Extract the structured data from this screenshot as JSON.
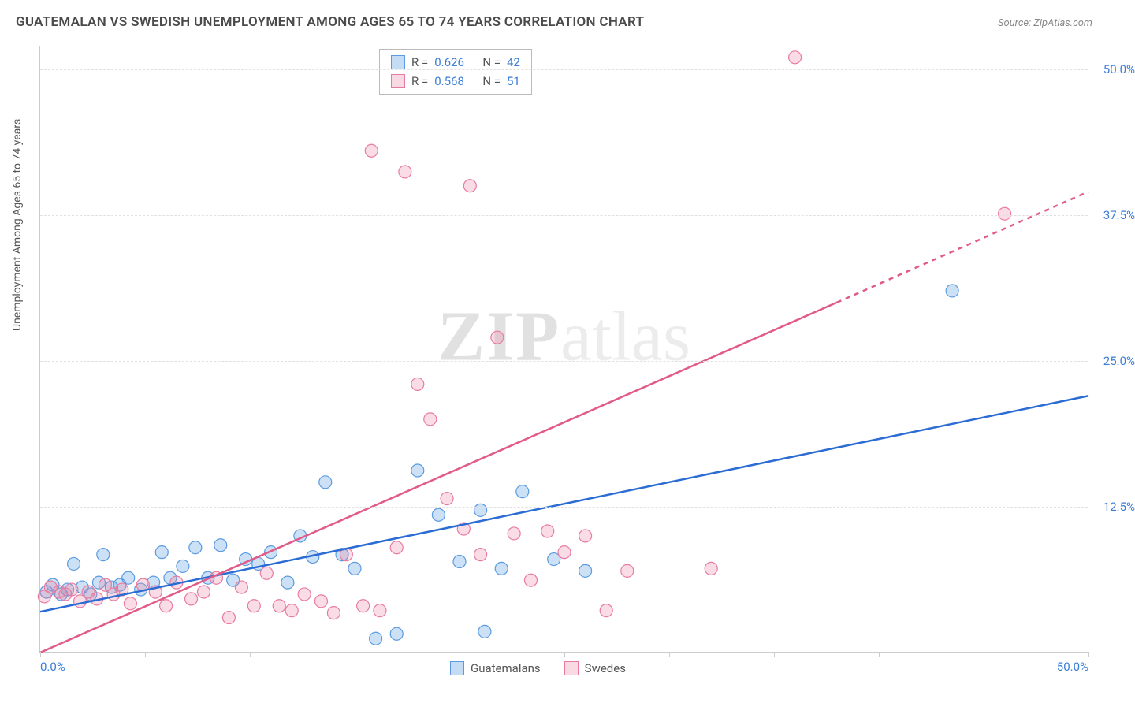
{
  "title": "GUATEMALAN VS SWEDISH UNEMPLOYMENT AMONG AGES 65 TO 74 YEARS CORRELATION CHART",
  "source": "Source: ZipAtlas.com",
  "ylabel": "Unemployment Among Ages 65 to 74 years",
  "watermark_a": "ZIP",
  "watermark_b": "atlas",
  "chart": {
    "type": "scatter",
    "xlim": [
      0,
      50
    ],
    "ylim": [
      0,
      52
    ],
    "x_axis_labels": [
      {
        "v": 0,
        "t": "0.0%"
      },
      {
        "v": 50,
        "t": "50.0%"
      }
    ],
    "y_axis_labels": [
      {
        "v": 12.5,
        "t": "12.5%"
      },
      {
        "v": 25.0,
        "t": "25.0%"
      },
      {
        "v": 37.5,
        "t": "37.5%"
      },
      {
        "v": 50.0,
        "t": "50.0%"
      }
    ],
    "x_tick_positions": [
      0,
      5,
      10,
      15,
      20,
      25,
      30,
      35,
      40,
      45,
      50
    ],
    "background_color": "#ffffff",
    "grid_color": "#e0e0e0",
    "series": [
      {
        "name": "Guatemalans",
        "color_fill": "rgba(90,155,225,0.30)",
        "color_stroke": "#5a9be1",
        "marker_r": 8,
        "R": "0.626",
        "N": "42",
        "trend": {
          "color": "#2b6cd4",
          "width": 2.5,
          "x1": 0,
          "y1": 3.5,
          "x2": 50,
          "y2": 22.0
        },
        "points": [
          [
            0.3,
            5.2
          ],
          [
            0.6,
            5.8
          ],
          [
            1.0,
            5.0
          ],
          [
            1.3,
            5.4
          ],
          [
            1.6,
            7.6
          ],
          [
            2.0,
            5.6
          ],
          [
            2.4,
            5.0
          ],
          [
            2.8,
            6.0
          ],
          [
            3.0,
            8.4
          ],
          [
            3.4,
            5.6
          ],
          [
            3.8,
            5.8
          ],
          [
            4.2,
            6.4
          ],
          [
            4.8,
            5.4
          ],
          [
            5.4,
            6.0
          ],
          [
            5.8,
            8.6
          ],
          [
            6.2,
            6.4
          ],
          [
            6.8,
            7.4
          ],
          [
            7.4,
            9.0
          ],
          [
            8.0,
            6.4
          ],
          [
            8.6,
            9.2
          ],
          [
            9.2,
            6.2
          ],
          [
            9.8,
            8.0
          ],
          [
            10.4,
            7.6
          ],
          [
            11.0,
            8.6
          ],
          [
            11.8,
            6.0
          ],
          [
            12.4,
            10.0
          ],
          [
            13.0,
            8.2
          ],
          [
            13.6,
            14.6
          ],
          [
            14.4,
            8.4
          ],
          [
            15.0,
            7.2
          ],
          [
            16.0,
            1.2
          ],
          [
            17.0,
            1.6
          ],
          [
            18.0,
            15.6
          ],
          [
            19.0,
            11.8
          ],
          [
            20.0,
            7.8
          ],
          [
            21.0,
            12.2
          ],
          [
            21.2,
            1.8
          ],
          [
            22.0,
            7.2
          ],
          [
            23.0,
            13.8
          ],
          [
            24.5,
            8.0
          ],
          [
            26.0,
            7.0
          ],
          [
            43.5,
            31.0
          ]
        ]
      },
      {
        "name": "Swedes",
        "color_fill": "rgba(235,130,160,0.28)",
        "color_stroke": "#e87ba0",
        "marker_r": 8,
        "R": "0.568",
        "N": "51",
        "trend": {
          "color": "#e15a88",
          "width": 2.5,
          "x1": 0,
          "y1": 0,
          "x2": 38,
          "y2": 30.0,
          "dash_after_x": 38,
          "x2d": 50,
          "y2d": 39.5
        },
        "points": [
          [
            0.2,
            4.8
          ],
          [
            0.5,
            5.6
          ],
          [
            0.9,
            5.2
          ],
          [
            1.2,
            5.0
          ],
          [
            1.5,
            5.4
          ],
          [
            1.9,
            4.4
          ],
          [
            2.3,
            5.2
          ],
          [
            2.7,
            4.6
          ],
          [
            3.1,
            5.8
          ],
          [
            3.5,
            5.0
          ],
          [
            3.9,
            5.4
          ],
          [
            4.3,
            4.2
          ],
          [
            4.9,
            5.8
          ],
          [
            5.5,
            5.2
          ],
          [
            6.0,
            4.0
          ],
          [
            6.5,
            6.0
          ],
          [
            7.2,
            4.6
          ],
          [
            7.8,
            5.2
          ],
          [
            8.4,
            6.4
          ],
          [
            9.0,
            3.0
          ],
          [
            9.6,
            5.6
          ],
          [
            10.2,
            4.0
          ],
          [
            10.8,
            6.8
          ],
          [
            11.4,
            4.0
          ],
          [
            12.0,
            3.6
          ],
          [
            12.6,
            5.0
          ],
          [
            13.4,
            4.4
          ],
          [
            14.0,
            3.4
          ],
          [
            14.6,
            8.4
          ],
          [
            15.4,
            4.0
          ],
          [
            16.2,
            3.6
          ],
          [
            17.0,
            9.0
          ],
          [
            17.4,
            41.2
          ],
          [
            15.8,
            43.0
          ],
          [
            18.0,
            23.0
          ],
          [
            18.6,
            20.0
          ],
          [
            19.4,
            13.2
          ],
          [
            20.2,
            10.6
          ],
          [
            20.5,
            40.0
          ],
          [
            21.0,
            8.4
          ],
          [
            21.8,
            27.0
          ],
          [
            22.6,
            10.2
          ],
          [
            23.4,
            6.2
          ],
          [
            24.2,
            10.4
          ],
          [
            25.0,
            8.6
          ],
          [
            26.0,
            10.0
          ],
          [
            27.0,
            3.6
          ],
          [
            28.0,
            7.0
          ],
          [
            32.0,
            7.2
          ],
          [
            36.0,
            51.0
          ],
          [
            46.0,
            37.6
          ]
        ]
      }
    ]
  },
  "legend_bottom": [
    {
      "label": "Guatemalans",
      "sw": "blue"
    },
    {
      "label": "Swedes",
      "sw": "pink"
    }
  ],
  "legend_top": [
    {
      "sw": "blue",
      "R": "0.626",
      "N": "42"
    },
    {
      "sw": "pink",
      "R": "0.568",
      "N": "51"
    }
  ]
}
